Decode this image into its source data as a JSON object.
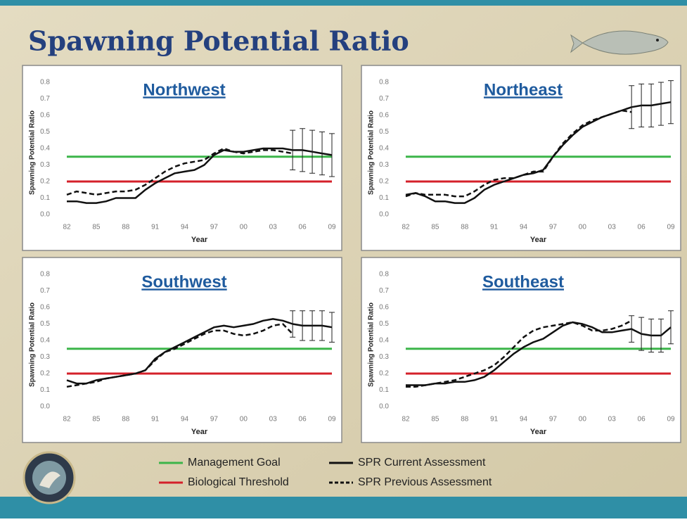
{
  "title": "Spawning Potential Ratio",
  "legend": [
    {
      "name": "Management Goal",
      "color": "#3cb54a",
      "style": "solid"
    },
    {
      "name": "Biological Threshold",
      "color": "#d4202a",
      "style": "solid"
    },
    {
      "name": "SPR Current Assessment",
      "color": "#111111",
      "style": "solid"
    },
    {
      "name": "SPR Previous Assessment",
      "color": "#111111",
      "style": "dashed"
    }
  ],
  "chart_data": [
    {
      "type": "line",
      "title": "Northwest",
      "x_label": "Year",
      "y_label": "Spawning Potential Ratio",
      "categories": [
        "82",
        null,
        null,
        "85",
        null,
        null,
        "88",
        null,
        null,
        "91",
        null,
        null,
        "94",
        null,
        null,
        "97",
        null,
        null,
        "00",
        null,
        null,
        "03",
        null,
        null,
        "06",
        null,
        null,
        "09"
      ],
      "ylim": [
        0,
        0.8
      ],
      "yticks": [
        {
          "value": 0,
          "label": "0.0"
        },
        0.1,
        0.2,
        0.3,
        0.4,
        0.5,
        0.6,
        0.7,
        0.8
      ],
      "hlines": [
        0.35,
        0.2
      ],
      "series": [
        {
          "values": [
            0.08,
            0.08,
            0.07,
            0.07,
            0.08,
            0.1,
            0.1,
            0.1,
            0.15,
            0.19,
            0.22,
            0.25,
            0.26,
            0.27,
            0.3,
            0.36,
            0.39,
            0.38,
            0.38,
            0.39,
            0.4,
            0.4,
            0.4,
            0.39,
            0.39,
            0.38,
            0.37,
            0.36
          ],
          "errors": [
            null,
            null,
            null,
            null,
            null,
            null,
            null,
            null,
            null,
            null,
            null,
            null,
            null,
            null,
            null,
            null,
            null,
            null,
            null,
            null,
            null,
            null,
            null,
            0.12,
            0.13,
            0.13,
            0.13,
            0.13
          ]
        },
        {
          "values": [
            0.12,
            0.14,
            0.13,
            0.12,
            0.13,
            0.14,
            0.14,
            0.15,
            0.18,
            0.22,
            0.26,
            0.29,
            0.31,
            0.32,
            0.33,
            0.37,
            0.4,
            0.38,
            0.37,
            0.38,
            0.39,
            0.39,
            0.38,
            0.37,
            null,
            null,
            null,
            null
          ]
        }
      ]
    },
    {
      "type": "line",
      "title": "Northeast",
      "x_label": "Year",
      "y_label": "Spawning Potential Ratio",
      "categories": [
        "82",
        null,
        null,
        "85",
        null,
        null,
        "88",
        null,
        null,
        "91",
        null,
        null,
        "94",
        null,
        null,
        "97",
        null,
        null,
        "00",
        null,
        null,
        "03",
        null,
        null,
        "06",
        null,
        null,
        "09"
      ],
      "ylim": [
        0,
        0.8
      ],
      "yticks": [
        {
          "value": 0,
          "label": "0.0"
        },
        0.1,
        0.2,
        0.3,
        0.4,
        0.5,
        0.6,
        0.7,
        0.8
      ],
      "hlines": [
        0.35,
        0.2
      ],
      "series": [
        {
          "values": [
            0.12,
            0.13,
            0.11,
            0.08,
            0.08,
            0.07,
            0.07,
            0.1,
            0.15,
            0.18,
            0.2,
            0.22,
            0.24,
            0.25,
            0.27,
            0.35,
            0.42,
            0.48,
            0.53,
            0.56,
            0.59,
            0.61,
            0.63,
            0.65,
            0.66,
            0.66,
            0.67,
            0.68
          ],
          "errors": [
            null,
            null,
            null,
            null,
            null,
            null,
            null,
            null,
            null,
            null,
            null,
            null,
            null,
            null,
            null,
            null,
            null,
            null,
            null,
            null,
            null,
            null,
            null,
            0.13,
            0.13,
            0.13,
            0.13,
            0.13
          ]
        },
        {
          "values": [
            0.11,
            0.13,
            0.12,
            0.12,
            0.12,
            0.11,
            0.11,
            0.14,
            0.18,
            0.21,
            0.22,
            0.22,
            0.24,
            0.26,
            0.26,
            0.35,
            0.43,
            0.49,
            0.54,
            0.57,
            0.59,
            0.61,
            0.63,
            0.62,
            null,
            null,
            null,
            null
          ]
        }
      ]
    },
    {
      "type": "line",
      "title": "Southwest",
      "x_label": "Year",
      "y_label": "Spawning Potential Ratio",
      "categories": [
        "82",
        null,
        null,
        "85",
        null,
        null,
        "88",
        null,
        null,
        "91",
        null,
        null,
        "94",
        null,
        null,
        "97",
        null,
        null,
        "00",
        null,
        null,
        "03",
        null,
        null,
        "06",
        null,
        null,
        "09"
      ],
      "ylim": [
        0,
        0.8
      ],
      "yticks": [
        {
          "value": 0,
          "label": "0.0"
        },
        0.1,
        0.2,
        0.3,
        0.4,
        0.5,
        0.6,
        0.7,
        0.8
      ],
      "hlines": [
        0.35,
        0.2
      ],
      "series": [
        {
          "values": [
            0.16,
            0.14,
            0.14,
            0.16,
            0.17,
            0.18,
            0.19,
            0.2,
            0.22,
            0.29,
            0.33,
            0.36,
            0.39,
            0.42,
            0.45,
            0.48,
            0.49,
            0.48,
            0.49,
            0.5,
            0.52,
            0.53,
            0.52,
            0.5,
            0.49,
            0.49,
            0.49,
            0.48
          ],
          "errors": [
            null,
            null,
            null,
            null,
            null,
            null,
            null,
            null,
            null,
            null,
            null,
            null,
            null,
            null,
            null,
            null,
            null,
            null,
            null,
            null,
            null,
            null,
            null,
            0.08,
            0.09,
            0.09,
            0.09,
            0.09
          ]
        },
        {
          "values": [
            0.12,
            0.13,
            0.14,
            0.15,
            0.17,
            0.18,
            0.19,
            0.2,
            0.22,
            0.28,
            0.33,
            0.35,
            0.38,
            0.41,
            0.44,
            0.46,
            0.46,
            0.44,
            0.43,
            0.44,
            0.46,
            0.49,
            0.5,
            0.44,
            null,
            null,
            null,
            null
          ]
        }
      ]
    },
    {
      "type": "line",
      "title": "Southeast",
      "x_label": "Year",
      "y_label": "Spawning Potential Ratio",
      "categories": [
        "82",
        null,
        null,
        "85",
        null,
        null,
        "88",
        null,
        null,
        "91",
        null,
        null,
        "94",
        null,
        null,
        "97",
        null,
        null,
        "00",
        null,
        null,
        "03",
        null,
        null,
        "06",
        null,
        null,
        "09"
      ],
      "ylim": [
        0,
        0.8
      ],
      "yticks": [
        {
          "value": 0,
          "label": "0.0"
        },
        0.1,
        0.2,
        0.3,
        0.4,
        0.5,
        0.6,
        0.7,
        0.8
      ],
      "hlines": [
        0.35,
        0.2
      ],
      "series": [
        {
          "values": [
            0.13,
            0.13,
            0.13,
            0.14,
            0.14,
            0.15,
            0.15,
            0.16,
            0.18,
            0.22,
            0.27,
            0.32,
            0.36,
            0.39,
            0.41,
            0.45,
            0.49,
            0.51,
            0.5,
            0.48,
            0.45,
            0.45,
            0.46,
            0.47,
            0.44,
            0.43,
            0.43,
            0.48
          ],
          "errors": [
            null,
            null,
            null,
            null,
            null,
            null,
            null,
            null,
            null,
            null,
            null,
            null,
            null,
            null,
            null,
            null,
            null,
            null,
            null,
            null,
            null,
            null,
            null,
            0.08,
            0.1,
            0.1,
            0.1,
            0.1
          ]
        },
        {
          "values": [
            0.12,
            0.12,
            0.13,
            0.14,
            0.15,
            0.16,
            0.18,
            0.2,
            0.22,
            0.25,
            0.3,
            0.36,
            0.42,
            0.46,
            0.48,
            0.49,
            0.5,
            0.51,
            0.49,
            0.46,
            0.46,
            0.47,
            0.49,
            0.52,
            null,
            null,
            null,
            null
          ]
        }
      ]
    }
  ]
}
